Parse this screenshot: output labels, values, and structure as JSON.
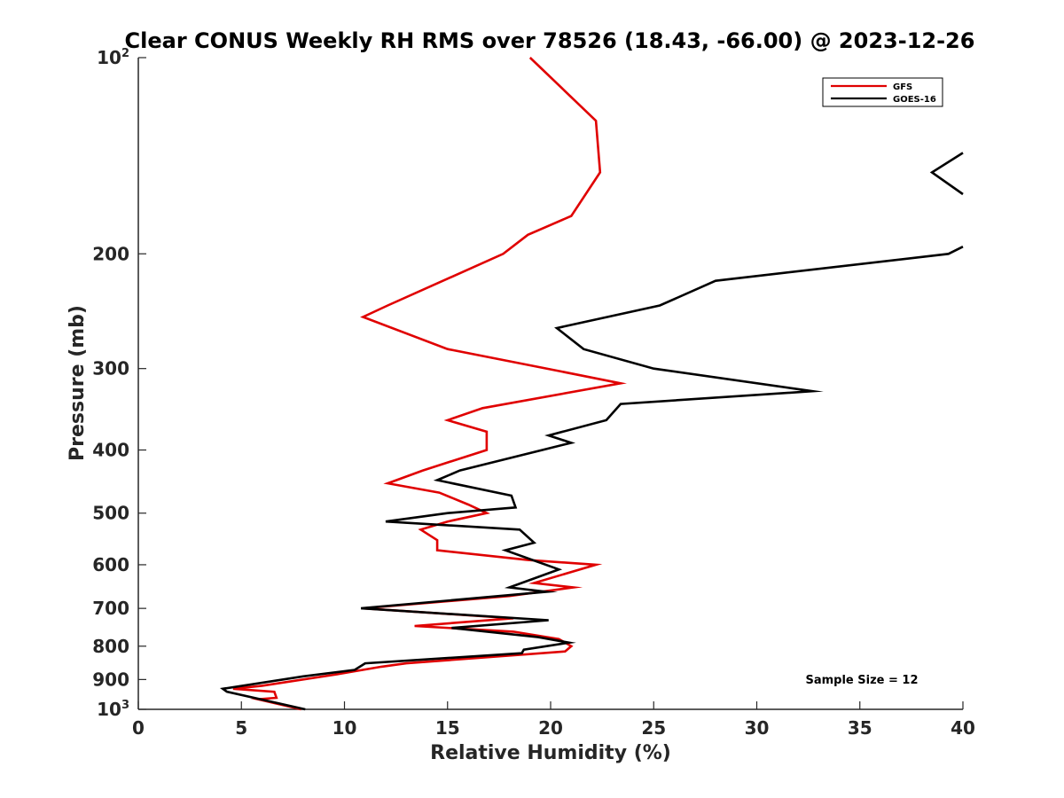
{
  "chart_data": {
    "type": "line",
    "title": "Clear CONUS Weekly RH RMS over 78526 (18.43, -66.00) @ 2023-12-26",
    "xlabel": "Relative Humidity (%)",
    "ylabel": "Pressure (mb)",
    "xlim": [
      0,
      40
    ],
    "ylim": [
      100,
      1000
    ],
    "y_scale": "log",
    "y_reversed": true,
    "x_ticks": [
      "0",
      "5",
      "10",
      "15",
      "20",
      "25",
      "30",
      "35",
      "40"
    ],
    "y_ticks": [
      {
        "value": 100,
        "base": "10",
        "exp": "2"
      },
      {
        "value": 200,
        "label": "200"
      },
      {
        "value": 300,
        "label": "300"
      },
      {
        "value": 400,
        "label": "400"
      },
      {
        "value": 500,
        "label": "500"
      },
      {
        "value": 600,
        "label": "600"
      },
      {
        "value": 700,
        "label": "700"
      },
      {
        "value": 800,
        "label": "800"
      },
      {
        "value": 900,
        "label": "900"
      },
      {
        "value": 1000,
        "base": "10",
        "exp": "3"
      }
    ],
    "grid": false,
    "legend_position": "top-right",
    "annotation": "Sample Size = 12",
    "series": [
      {
        "name": "GFS",
        "color": "#e00000",
        "points": [
          [
            19.0,
            100
          ],
          [
            22.2,
            125
          ],
          [
            22.4,
            150
          ],
          [
            21.0,
            175
          ],
          [
            18.9,
            187
          ],
          [
            17.7,
            200
          ],
          [
            12.1,
            240
          ],
          [
            10.9,
            250
          ],
          [
            15.0,
            280
          ],
          [
            20.5,
            303
          ],
          [
            23.4,
            316
          ],
          [
            16.7,
            345
          ],
          [
            15.0,
            360
          ],
          [
            16.9,
            375
          ],
          [
            16.9,
            400
          ],
          [
            13.8,
            430
          ],
          [
            12.1,
            450
          ],
          [
            14.6,
            465
          ],
          [
            16.0,
            485
          ],
          [
            16.9,
            500
          ],
          [
            15.0,
            515
          ],
          [
            13.7,
            530
          ],
          [
            14.5,
            550
          ],
          [
            14.5,
            570
          ],
          [
            18.9,
            590
          ],
          [
            22.2,
            600
          ],
          [
            19.2,
            640
          ],
          [
            21.1,
            650
          ],
          [
            18.0,
            670
          ],
          [
            10.9,
            700
          ],
          [
            18.2,
            725
          ],
          [
            13.4,
            745
          ],
          [
            18.2,
            760
          ],
          [
            20.4,
            780
          ],
          [
            21.0,
            800
          ],
          [
            20.7,
            815
          ],
          [
            13.0,
            850
          ],
          [
            11.8,
            860
          ],
          [
            9.5,
            885
          ],
          [
            6.0,
            920
          ],
          [
            4.6,
            930
          ],
          [
            6.6,
            940
          ],
          [
            6.7,
            960
          ],
          [
            5.8,
            965
          ],
          [
            7.9,
            1000
          ]
        ]
      },
      {
        "name": "GOES-16",
        "color": "#000000",
        "points": [
          [
            8.1,
            1000
          ],
          [
            4.3,
            940
          ],
          [
            4.1,
            930
          ],
          [
            8.0,
            890
          ],
          [
            10.5,
            870
          ],
          [
            11.0,
            850
          ],
          [
            18.6,
            820
          ],
          [
            18.7,
            810
          ],
          [
            20.9,
            790
          ],
          [
            19.4,
            775
          ],
          [
            15.2,
            750
          ],
          [
            19.9,
            730
          ],
          [
            10.8,
            700
          ],
          [
            19.8,
            660
          ],
          [
            18.0,
            650
          ],
          [
            20.4,
            610
          ],
          [
            17.8,
            570
          ],
          [
            19.2,
            555
          ],
          [
            18.5,
            530
          ],
          [
            12.0,
            515
          ],
          [
            15.0,
            500
          ],
          [
            18.3,
            490
          ],
          [
            18.1,
            470
          ],
          [
            14.5,
            445
          ],
          [
            15.6,
            430
          ],
          [
            21.0,
            390
          ],
          [
            19.9,
            380
          ],
          [
            22.7,
            360
          ],
          [
            23.4,
            340
          ],
          [
            32.7,
            325
          ],
          [
            25.0,
            300
          ],
          [
            21.6,
            280
          ],
          [
            20.3,
            260
          ],
          [
            25.3,
            240
          ],
          [
            28.0,
            220
          ],
          [
            39.3,
            200
          ],
          [
            40.0,
            195
          ]
        ]
      },
      {
        "name": "",
        "color": "#000000",
        "points": [
          [
            40.0,
            140
          ],
          [
            38.5,
            150
          ],
          [
            40.0,
            162
          ]
        ]
      }
    ]
  }
}
